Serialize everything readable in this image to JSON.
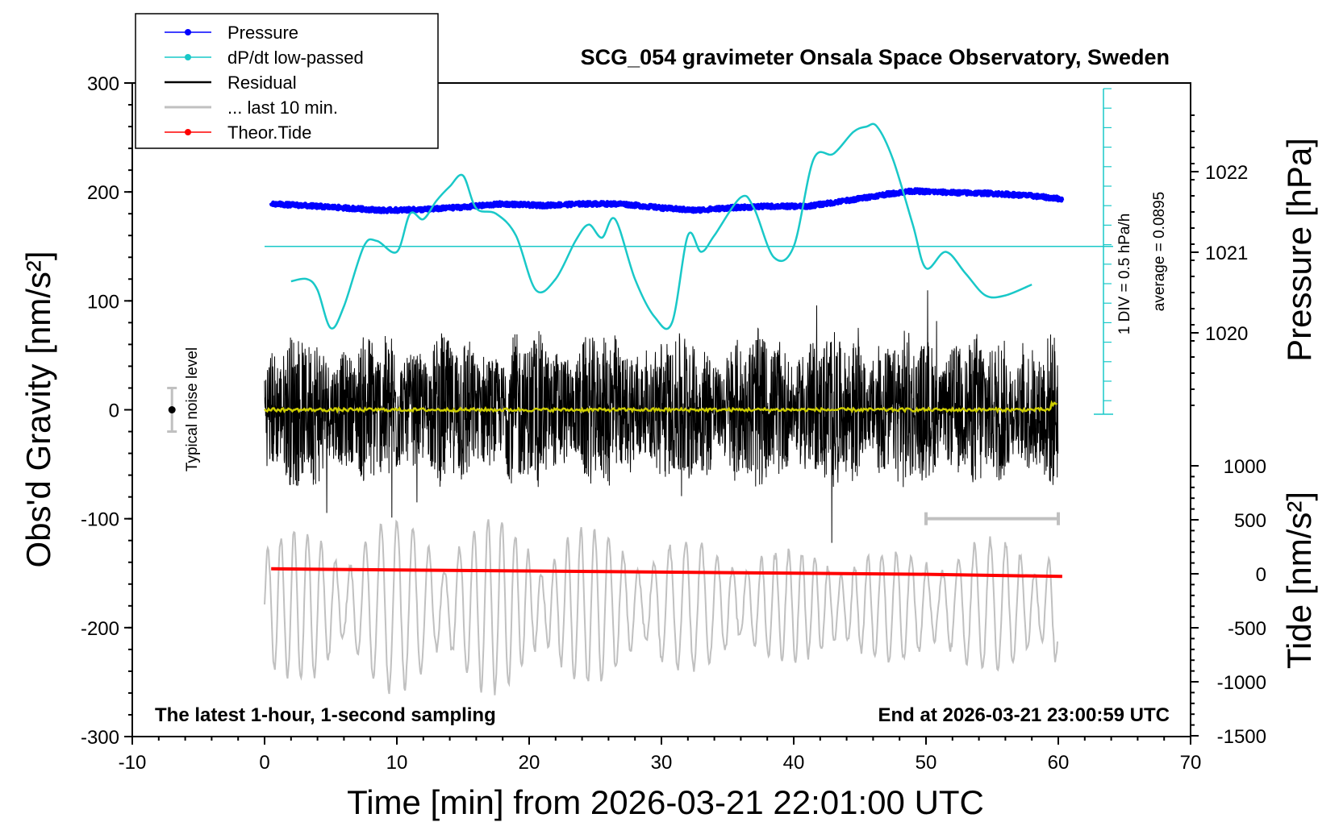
{
  "chart_data": {
    "type": "line",
    "title": "SCG_054 gravimeter Onsala Space Observatory, Sweden",
    "xlabel": "Time [min] from 2026-03-21 22:01:00 UTC",
    "ylabel_left": "Obs'd Gravity [nm/s²]",
    "ylabel_right_top": "Pressure [hPa]",
    "ylabel_right_bottom": "Tide [nm/s²]",
    "xlim": [
      -10,
      70
    ],
    "ylim": [
      -300,
      300
    ],
    "x_ticks": [
      "-10",
      "0",
      "10",
      "20",
      "30",
      "40",
      "50",
      "60",
      "70"
    ],
    "y_ticks": [
      "300",
      "200",
      "100",
      "0",
      "-100",
      "-200",
      "-300"
    ],
    "pressure_ticks": [
      "1022",
      "1021",
      "1020"
    ],
    "tide_ticks": [
      "1000",
      "500",
      "0",
      "-500",
      "-1000",
      "-1500"
    ],
    "legend": [
      "Pressure",
      "dP/dt low-passed",
      "Residual",
      "... last 10 min.",
      "Theor.Tide"
    ],
    "colors": {
      "pressure": "#0000ff",
      "dpdt": "#19c8c8",
      "residual": "#000000",
      "last10": "#c0c0c0",
      "tide": "#ff0000",
      "smoothed": "#cccc00"
    },
    "footer_left": "The latest 1-hour, 1-second sampling",
    "footer_right": "End at 2026-03-21 23:00:59 UTC",
    "noise_label": "Typical noise level",
    "dpdt_scale": "1 DIV = 0.5 hPa/h",
    "dpdt_average": "average = 0.0895",
    "series": [
      {
        "name": "Pressure",
        "unit": "hPa",
        "x": [
          0.5,
          3,
          6,
          9,
          12,
          15,
          18,
          21,
          24,
          27,
          30,
          32.5,
          35,
          38,
          41,
          44,
          47,
          49,
          52,
          55,
          58,
          60.3
        ],
        "values": [
          1021.6,
          1021.58,
          1021.55,
          1021.52,
          1021.53,
          1021.56,
          1021.6,
          1021.58,
          1021.6,
          1021.6,
          1021.55,
          1021.52,
          1021.55,
          1021.57,
          1021.57,
          1021.64,
          1021.72,
          1021.76,
          1021.74,
          1021.73,
          1021.7,
          1021.66
        ]
      },
      {
        "name": "dP/dt low-passed",
        "unit": "nm/s² (plotted)",
        "x": [
          2,
          3.2,
          4,
          5,
          6,
          7.5,
          8.5,
          10,
          11,
          12,
          13,
          14,
          15,
          16,
          17.5,
          19,
          20.5,
          22,
          23.5,
          24.5,
          25.5,
          26.5,
          28,
          29.5,
          30.8,
          32,
          33,
          34,
          36,
          37,
          38.5,
          40,
          41.5,
          43,
          44.5,
          45.5,
          46.3,
          47.5,
          49,
          50,
          51.5,
          53,
          54.5,
          56,
          58
        ],
        "values": [
          118,
          120,
          110,
          75,
          95,
          150,
          155,
          145,
          180,
          175,
          192,
          205,
          215,
          185,
          180,
          160,
          110,
          120,
          155,
          170,
          158,
          175,
          120,
          85,
          80,
          160,
          145,
          160,
          195,
          185,
          140,
          150,
          230,
          235,
          255,
          260,
          260,
          230,
          170,
          130,
          145,
          125,
          105,
          105,
          115
        ]
      },
      {
        "name": "Residual",
        "unit": "nm/s²",
        "x": [
          0,
          60
        ],
        "values": [
          0,
          0
        ],
        "envelope": [
          65,
          125
        ]
      },
      {
        "name": "... last 10 min.",
        "unit": "nm/s²",
        "x": [
          0,
          60
        ],
        "values": [
          -180,
          -180
        ],
        "range": [
          -300,
          -80
        ]
      },
      {
        "name": "Theor.Tide",
        "unit": "nm/s²",
        "x": [
          0.5,
          10,
          20,
          30,
          40,
          50,
          60.3
        ],
        "values": [
          -146,
          -147,
          -148,
          -149,
          -150,
          -151,
          -153
        ]
      }
    ]
  }
}
